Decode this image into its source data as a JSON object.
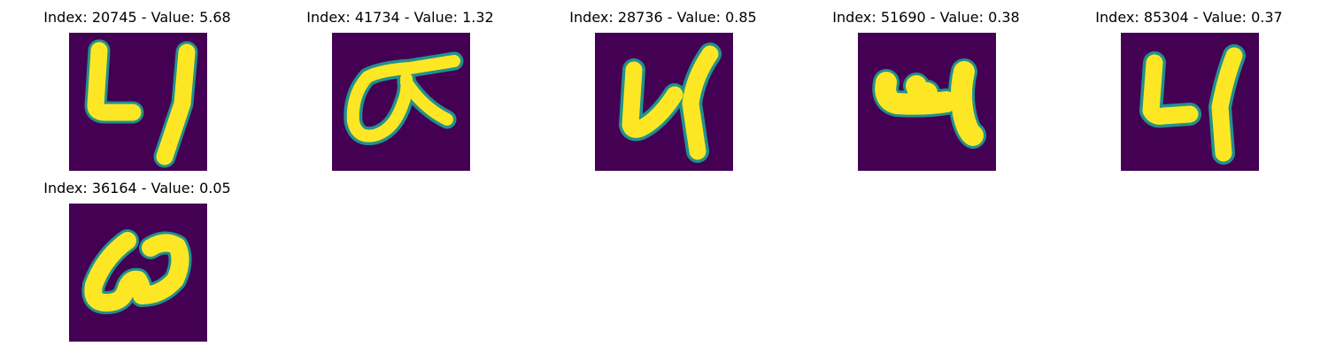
{
  "figure": {
    "panels": [
      {
        "title": "Index: 20745 - Value: 5.68",
        "glyph": "four-open",
        "colors": {
          "bg": "#440154",
          "fg": "#fde725",
          "edge": "#21918c"
        }
      },
      {
        "title": "Index: 41734 - Value: 1.32",
        "glyph": "sigma-stroke",
        "colors": {
          "bg": "#440154",
          "fg": "#fde725",
          "edge": "#21918c"
        }
      },
      {
        "title": "Index: 28736 - Value: 0.85",
        "glyph": "four-open",
        "colors": {
          "bg": "#440154",
          "fg": "#fde725",
          "edge": "#21918c"
        }
      },
      {
        "title": "Index: 51690 - Value: 0.38",
        "glyph": "four-squat",
        "colors": {
          "bg": "#440154",
          "fg": "#fde725",
          "edge": "#21918c"
        }
      },
      {
        "title": "Index: 85304 - Value: 0.37",
        "glyph": "four-open",
        "colors": {
          "bg": "#440154",
          "fg": "#fde725",
          "edge": "#21918c"
        }
      },
      {
        "title": "Index: 36164 - Value: 0.05",
        "glyph": "loop-a",
        "colors": {
          "bg": "#440154",
          "fg": "#fde725",
          "edge": "#21918c"
        }
      }
    ]
  }
}
